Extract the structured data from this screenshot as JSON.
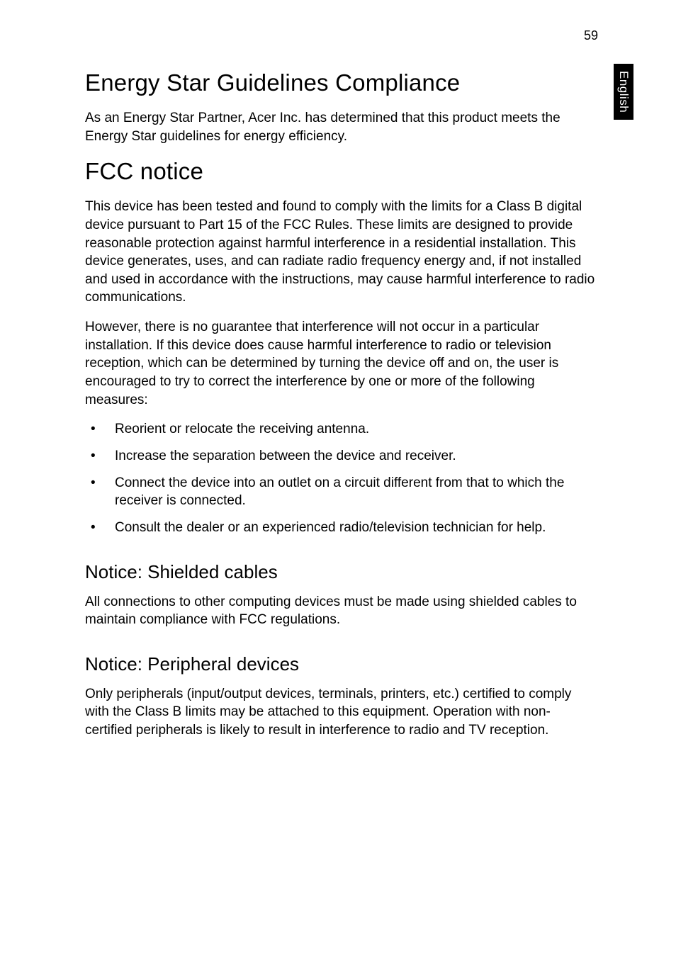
{
  "page_number": "59",
  "side_tab": "English",
  "sections": {
    "s1": {
      "title": "Energy Star Guidelines Compliance",
      "p1": "As an Energy Star Partner, Acer Inc. has determined that this product meets the Energy Star guidelines for energy efficiency."
    },
    "s2": {
      "title": "FCC notice",
      "p1": "This device has been tested and found to comply with the limits for a Class B digital device pursuant to Part 15 of the FCC Rules. These limits are designed to provide reasonable protection against harmful interference in a residential installation. This device generates, uses, and can radiate radio frequency energy and, if not installed and used in accordance with the instructions, may cause harmful interference to radio communications.",
      "p2": "However, there is no guarantee that interference will not occur in a particular installation. If this device does cause harmful interference to radio or television reception, which can be determined by turning the device off and on, the user is encouraged to try to correct the interference by one or more of the following measures:",
      "bullets": {
        "b1": "Reorient or relocate the receiving antenna.",
        "b2": "Increase the separation between the device and receiver.",
        "b3": "Connect the device into an outlet on a circuit different from that to which the receiver is connected.",
        "b4": "Consult the dealer or an experienced radio/television technician for help."
      }
    },
    "s3": {
      "title": "Notice: Shielded cables",
      "p1": "All connections to other computing devices must be made using shielded cables to maintain compliance with FCC regulations."
    },
    "s4": {
      "title": "Notice: Peripheral devices",
      "p1": "Only peripherals (input/output devices, terminals, printers, etc.) certified to comply with the Class B limits may be attached to this equipment. Operation with non-certified peripherals is likely to result in interference to radio and TV reception."
    }
  }
}
